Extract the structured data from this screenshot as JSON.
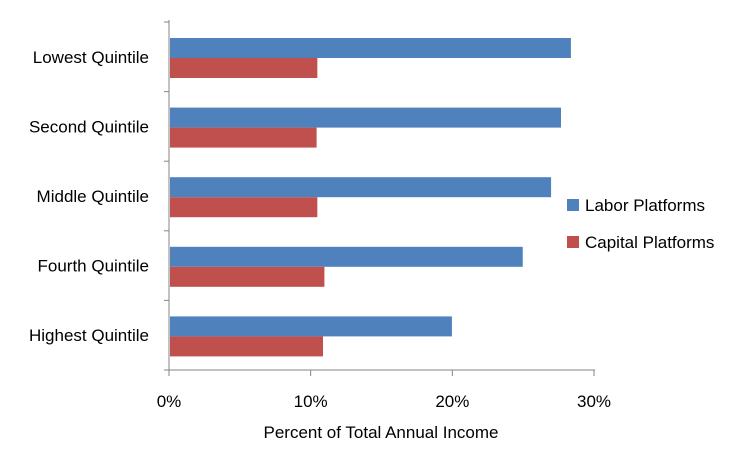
{
  "chart_data": {
    "type": "bar",
    "orientation": "horizontal",
    "title": "",
    "categories": [
      "Lowest Quintile",
      "Second Quintile",
      "Middle Quintile",
      "Fourth Quintile",
      "Highest Quintile"
    ],
    "series": [
      {
        "name": "Labor Platforms",
        "color": "#4f81bd",
        "values": [
          28.3,
          27.6,
          26.9,
          24.9,
          19.9
        ]
      },
      {
        "name": "Capital Platforms",
        "color": "#c0504d",
        "values": [
          10.4,
          10.35,
          10.4,
          10.9,
          10.8
        ]
      }
    ],
    "xlabel": "Percent of Total Annual Income",
    "ylabel": "",
    "xlim": [
      0,
      30
    ],
    "xticks": [
      "0%",
      "10%",
      "20%",
      "30%"
    ],
    "grid": false,
    "legend_position": "right"
  }
}
